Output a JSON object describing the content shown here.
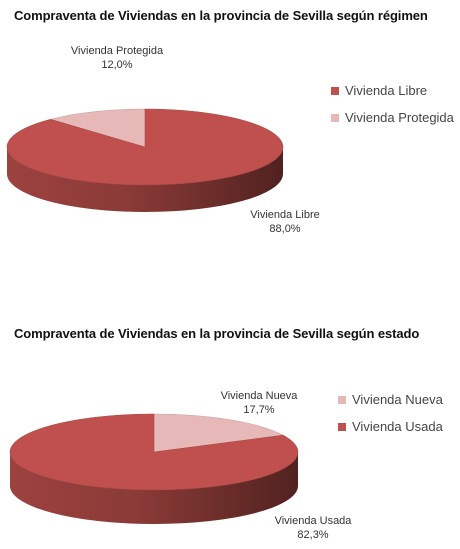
{
  "chart_data": [
    {
      "type": "pie",
      "title": "Compraventa de Viviendas en la provincia de Sevilla según régimen",
      "categories": [
        "Vivienda Libre",
        "Vivienda Protegida"
      ],
      "values": [
        88.0,
        12.0
      ],
      "value_labels": [
        "88,0%",
        "12,0%"
      ],
      "colors": [
        "#c0504d",
        "#e6b9b8"
      ],
      "legend": {
        "placement": "right",
        "entries": [
          "Vivienda Libre",
          "Vivienda Protegida"
        ]
      }
    },
    {
      "type": "pie",
      "title": "Compraventa de Viviendas en la provincia de Sevilla según estado",
      "categories": [
        "Vivienda Nueva",
        "Vivienda Usada"
      ],
      "values": [
        17.7,
        82.3
      ],
      "value_labels": [
        "17,7%",
        "82,3%"
      ],
      "colors": [
        "#e6b9b8",
        "#c0504d"
      ],
      "legend": {
        "placement": "right",
        "entries": [
          "Vivienda Nueva",
          "Vivienda Usada"
        ]
      }
    }
  ]
}
